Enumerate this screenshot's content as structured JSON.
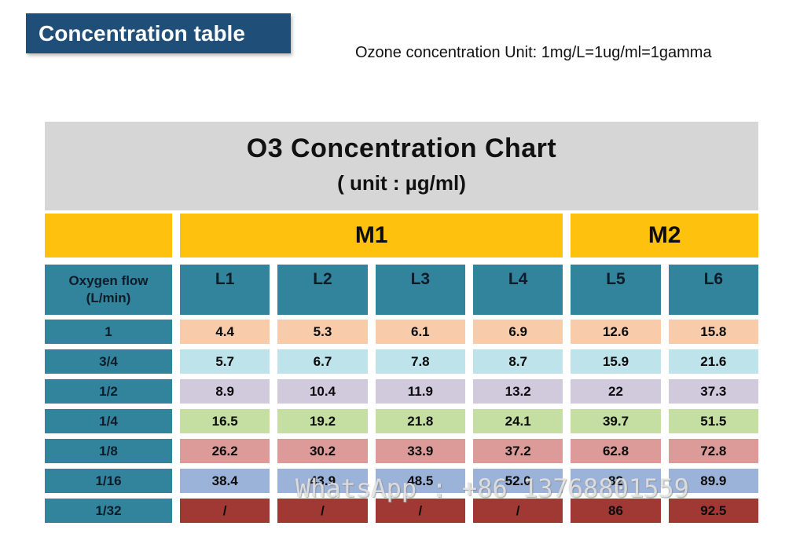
{
  "page": {
    "badge_label": "Concentration table",
    "unit_note": "Ozone concentration Unit: 1mg/L=1ug/ml=1gamma",
    "watermark": "WhatsApp : +86 13768801559"
  },
  "colors": {
    "badge_bg": "#1F4E79",
    "title_block_bg": "#D6D6D6",
    "group_header_bg": "#FEC10D",
    "column_header_bg": "#31849B",
    "row_label_bg": "#31849B"
  },
  "chart_data": {
    "type": "table",
    "title": "O3 Concentration Chart",
    "unit_label": "( unit : µg/ml)",
    "group_headers": [
      {
        "label": "",
        "span": 1
      },
      {
        "label": "M1",
        "span": 4
      },
      {
        "label": "M2",
        "span": 2
      }
    ],
    "flow_header": {
      "line1": "Oxygen flow",
      "line2": "(L/min)"
    },
    "level_headers": [
      "L1",
      "L2",
      "L3",
      "L4",
      "L5",
      "L6"
    ],
    "rows": [
      {
        "flow": "1",
        "values": [
          "4.4",
          "5.3",
          "6.1",
          "6.9",
          "12.6",
          "15.8"
        ],
        "bg": "#F8CBAA"
      },
      {
        "flow": "3/4",
        "values": [
          "5.7",
          "6.7",
          "7.8",
          "8.7",
          "15.9",
          "21.6"
        ],
        "bg": "#BFE3EA"
      },
      {
        "flow": "1/2",
        "values": [
          "8.9",
          "10.4",
          "11.9",
          "13.2",
          "22",
          "37.3"
        ],
        "bg": "#D1CADD"
      },
      {
        "flow": "1/4",
        "values": [
          "16.5",
          "19.2",
          "21.8",
          "24.1",
          "39.7",
          "51.5"
        ],
        "bg": "#C5DEA1"
      },
      {
        "flow": "1/8",
        "values": [
          "26.2",
          "30.2",
          "33.9",
          "37.2",
          "62.8",
          "72.8"
        ],
        "bg": "#DC9B99"
      },
      {
        "flow": "1/16",
        "values": [
          "38.4",
          "43.9",
          "48.5",
          "52.0",
          "82",
          "89.9"
        ],
        "bg": "#9CB3D9"
      },
      {
        "flow": "1/32",
        "values": [
          "/",
          "/",
          "/",
          "/",
          "86",
          "92.5"
        ],
        "bg": "#A03834"
      }
    ]
  }
}
